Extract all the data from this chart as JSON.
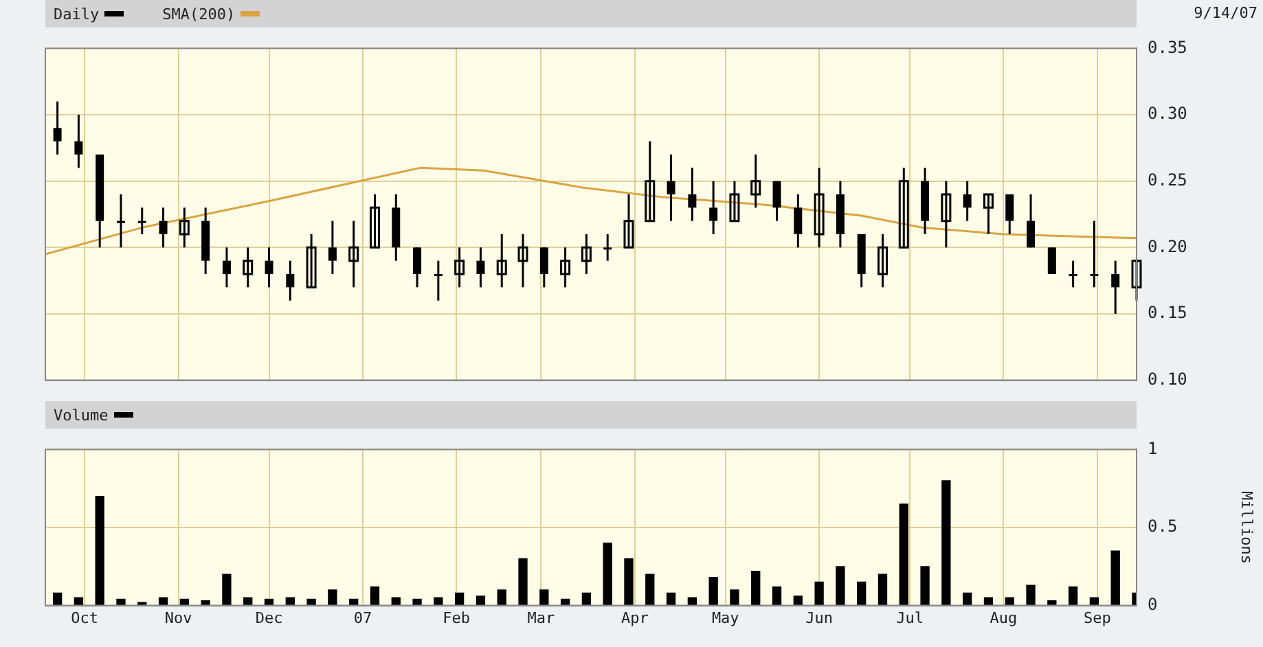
{
  "chart_data": [
    {
      "type": "candlestick",
      "annotations": [
        "9/14/07"
      ],
      "legend": "top left",
      "grid": true,
      "tick_labels": "y",
      "marker": "none",
      "line_style": "solid",
      "xlim": [
        "2006-09-18",
        "2007-09-14"
      ],
      "xticks": [
        {
          "value": "2006-10-01",
          "label": null
        },
        {
          "value": "2006-11-01",
          "label": null
        },
        {
          "value": "2006-12-01",
          "label": null
        },
        {
          "value": "2007-01-01",
          "label": null
        },
        {
          "value": "2007-02-01",
          "label": null
        },
        {
          "value": "2007-03-01",
          "label": null
        },
        {
          "value": "2007-04-01",
          "label": null
        },
        {
          "value": "2007-05-01",
          "label": null
        },
        {
          "value": "2007-06-01",
          "label": null
        },
        {
          "value": "2007-07-01",
          "label": null
        },
        {
          "value": "2007-08-01",
          "label": null
        },
        {
          "value": "2007-09-01",
          "label": null
        }
      ],
      "ylim": [
        0.1,
        0.35
      ],
      "yticks": [
        {
          "value": 0.1,
          "label": "0.10"
        },
        {
          "value": 0.15,
          "label": "0.15"
        },
        {
          "value": 0.2,
          "label": "0.20"
        },
        {
          "value": 0.25,
          "label": "0.25"
        },
        {
          "value": 0.3,
          "label": "0.30"
        },
        {
          "value": 0.35,
          "label": "0.35"
        }
      ],
      "series": [
        {
          "name": "Daily",
          "color": "#000000",
          "x": [
            "2006-09-22",
            "2006-09-29",
            "2006-10-06",
            "2006-10-13",
            "2006-10-20",
            "2006-10-27",
            "2006-11-03",
            "2006-11-10",
            "2006-11-17",
            "2006-11-24",
            "2006-12-01",
            "2006-12-08",
            "2006-12-15",
            "2006-12-22",
            "2006-12-29",
            "2007-01-05",
            "2007-01-12",
            "2007-01-19",
            "2007-01-26",
            "2007-02-02",
            "2007-02-09",
            "2007-02-16",
            "2007-02-23",
            "2007-03-02",
            "2007-03-09",
            "2007-03-16",
            "2007-03-23",
            "2007-03-30",
            "2007-04-06",
            "2007-04-13",
            "2007-04-20",
            "2007-04-27",
            "2007-05-04",
            "2007-05-11",
            "2007-05-18",
            "2007-05-25",
            "2007-06-01",
            "2007-06-08",
            "2007-06-15",
            "2007-06-22",
            "2007-06-29",
            "2007-07-06",
            "2007-07-13",
            "2007-07-20",
            "2007-07-27",
            "2007-08-03",
            "2007-08-10",
            "2007-08-17",
            "2007-08-24",
            "2007-08-31",
            "2007-09-07",
            "2007-09-14"
          ],
          "ohlc": [
            [
              0.29,
              0.31,
              0.27,
              0.28
            ],
            [
              0.28,
              0.3,
              0.26,
              0.27
            ],
            [
              0.27,
              0.27,
              0.2,
              0.22
            ],
            [
              0.22,
              0.24,
              0.2,
              0.22
            ],
            [
              0.22,
              0.23,
              0.21,
              0.22
            ],
            [
              0.22,
              0.23,
              0.2,
              0.21
            ],
            [
              0.21,
              0.23,
              0.2,
              0.22
            ],
            [
              0.22,
              0.23,
              0.18,
              0.19
            ],
            [
              0.19,
              0.2,
              0.17,
              0.18
            ],
            [
              0.18,
              0.2,
              0.17,
              0.19
            ],
            [
              0.19,
              0.2,
              0.17,
              0.18
            ],
            [
              0.18,
              0.19,
              0.16,
              0.17
            ],
            [
              0.17,
              0.21,
              0.17,
              0.2
            ],
            [
              0.2,
              0.22,
              0.18,
              0.19
            ],
            [
              0.19,
              0.22,
              0.17,
              0.2
            ],
            [
              0.2,
              0.24,
              0.2,
              0.23
            ],
            [
              0.23,
              0.24,
              0.19,
              0.2
            ],
            [
              0.2,
              0.2,
              0.17,
              0.18
            ],
            [
              0.18,
              0.19,
              0.16,
              0.18
            ],
            [
              0.18,
              0.2,
              0.17,
              0.19
            ],
            [
              0.19,
              0.2,
              0.17,
              0.18
            ],
            [
              0.18,
              0.21,
              0.17,
              0.19
            ],
            [
              0.19,
              0.21,
              0.17,
              0.2
            ],
            [
              0.2,
              0.2,
              0.17,
              0.18
            ],
            [
              0.18,
              0.2,
              0.17,
              0.19
            ],
            [
              0.19,
              0.21,
              0.18,
              0.2
            ],
            [
              0.2,
              0.21,
              0.19,
              0.2
            ],
            [
              0.2,
              0.24,
              0.2,
              0.22
            ],
            [
              0.22,
              0.28,
              0.22,
              0.25
            ],
            [
              0.25,
              0.27,
              0.22,
              0.24
            ],
            [
              0.24,
              0.26,
              0.22,
              0.23
            ],
            [
              0.23,
              0.25,
              0.21,
              0.22
            ],
            [
              0.22,
              0.25,
              0.22,
              0.24
            ],
            [
              0.24,
              0.27,
              0.23,
              0.25
            ],
            [
              0.25,
              0.25,
              0.22,
              0.23
            ],
            [
              0.23,
              0.24,
              0.2,
              0.21
            ],
            [
              0.21,
              0.26,
              0.2,
              0.24
            ],
            [
              0.24,
              0.25,
              0.2,
              0.21
            ],
            [
              0.21,
              0.21,
              0.17,
              0.18
            ],
            [
              0.18,
              0.21,
              0.17,
              0.2
            ],
            [
              0.2,
              0.26,
              0.2,
              0.25
            ],
            [
              0.25,
              0.26,
              0.21,
              0.22
            ],
            [
              0.22,
              0.25,
              0.2,
              0.24
            ],
            [
              0.24,
              0.25,
              0.22,
              0.23
            ],
            [
              0.23,
              0.24,
              0.21,
              0.24
            ],
            [
              0.24,
              0.24,
              0.21,
              0.22
            ],
            [
              0.22,
              0.24,
              0.2,
              0.2
            ],
            [
              0.2,
              0.2,
              0.18,
              0.18
            ],
            [
              0.18,
              0.19,
              0.17,
              0.18
            ],
            [
              0.18,
              0.22,
              0.17,
              0.18
            ],
            [
              0.18,
              0.19,
              0.15,
              0.17
            ],
            [
              0.17,
              0.19,
              0.16,
              0.19
            ]
          ]
        },
        {
          "type": "line",
          "name": "SMA(200)",
          "color": "#d9a441",
          "x": [
            "2006-09-18",
            "2006-10-20",
            "2006-12-01",
            "2007-01-10",
            "2007-01-20",
            "2007-02-10",
            "2007-03-15",
            "2007-04-10",
            "2007-05-15",
            "2007-06-15",
            "2007-07-05",
            "2007-08-01",
            "2007-09-14"
          ],
          "values": [
            0.195,
            0.215,
            0.235,
            0.255,
            0.26,
            0.258,
            0.245,
            0.238,
            0.232,
            0.224,
            0.215,
            0.21,
            0.207
          ]
        }
      ]
    },
    {
      "type": "bar",
      "legend": "top left",
      "grid": true,
      "ylabel": "Millions",
      "xlim": [
        "2006-09-18",
        "2007-09-14"
      ],
      "xticks": [
        {
          "value": "2006-10-01",
          "label": "Oct"
        },
        {
          "value": "2006-11-01",
          "label": "Nov"
        },
        {
          "value": "2006-12-01",
          "label": "Dec"
        },
        {
          "value": "2007-01-01",
          "label": "07"
        },
        {
          "value": "2007-02-01",
          "label": "Feb"
        },
        {
          "value": "2007-03-01",
          "label": "Mar"
        },
        {
          "value": "2007-04-01",
          "label": "Apr"
        },
        {
          "value": "2007-05-01",
          "label": "May"
        },
        {
          "value": "2007-06-01",
          "label": "Jun"
        },
        {
          "value": "2007-07-01",
          "label": "Jul"
        },
        {
          "value": "2007-08-01",
          "label": "Aug"
        },
        {
          "value": "2007-09-01",
          "label": "Sep"
        }
      ],
      "ylim": [
        0,
        1
      ],
      "yticks": [
        0,
        0.5,
        1
      ],
      "x": [
        "2006-09-22",
        "2006-09-29",
        "2006-10-06",
        "2006-10-13",
        "2006-10-20",
        "2006-10-27",
        "2006-11-03",
        "2006-11-10",
        "2006-11-17",
        "2006-11-24",
        "2006-12-01",
        "2006-12-08",
        "2006-12-15",
        "2006-12-22",
        "2006-12-29",
        "2007-01-05",
        "2007-01-12",
        "2007-01-19",
        "2007-01-26",
        "2007-02-02",
        "2007-02-09",
        "2007-02-16",
        "2007-02-23",
        "2007-03-02",
        "2007-03-09",
        "2007-03-16",
        "2007-03-23",
        "2007-03-30",
        "2007-04-06",
        "2007-04-13",
        "2007-04-20",
        "2007-04-27",
        "2007-05-04",
        "2007-05-11",
        "2007-05-18",
        "2007-05-25",
        "2007-06-01",
        "2007-06-08",
        "2007-06-15",
        "2007-06-22",
        "2007-06-29",
        "2007-07-06",
        "2007-07-13",
        "2007-07-20",
        "2007-07-27",
        "2007-08-03",
        "2007-08-10",
        "2007-08-17",
        "2007-08-24",
        "2007-08-31",
        "2007-09-07",
        "2007-09-14"
      ],
      "series": [
        {
          "name": "Volume",
          "color": "#000000",
          "values": [
            0.08,
            0.05,
            0.7,
            0.04,
            0.02,
            0.05,
            0.04,
            0.03,
            0.2,
            0.05,
            0.04,
            0.05,
            0.04,
            0.1,
            0.04,
            0.12,
            0.05,
            0.04,
            0.05,
            0.08,
            0.06,
            0.1,
            0.3,
            0.1,
            0.04,
            0.08,
            0.4,
            0.3,
            0.2,
            0.08,
            0.05,
            0.18,
            0.1,
            0.22,
            0.12,
            0.06,
            0.15,
            0.25,
            0.15,
            0.2,
            0.65,
            0.25,
            0.8,
            0.08,
            0.05,
            0.05,
            0.13,
            0.03,
            0.12,
            0.05,
            0.35,
            0.08
          ]
        }
      ]
    }
  ]
}
